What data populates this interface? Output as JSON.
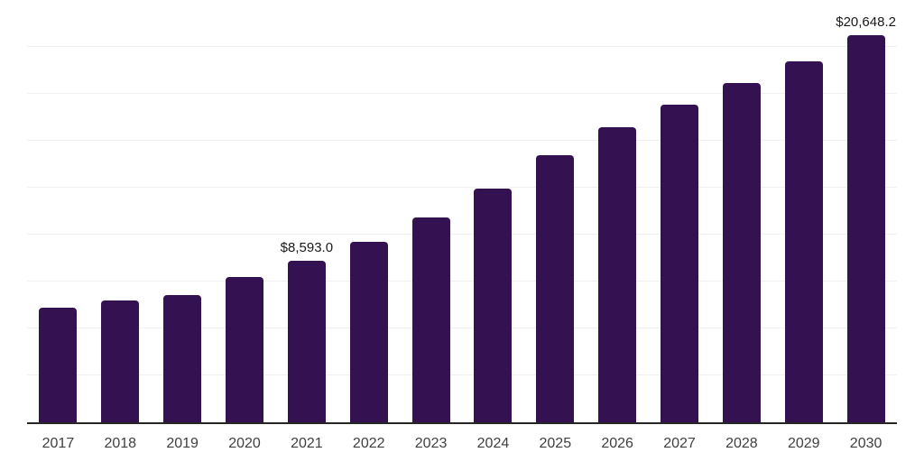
{
  "chart_data": {
    "type": "bar",
    "title": "",
    "xlabel": "",
    "ylabel": "",
    "categories": [
      "2017",
      "2018",
      "2019",
      "2020",
      "2021",
      "2022",
      "2023",
      "2024",
      "2025",
      "2026",
      "2027",
      "2028",
      "2029",
      "2030"
    ],
    "values": [
      6130,
      6490,
      6800,
      7760,
      8593.0,
      9630,
      10920,
      12460,
      14230,
      15710,
      16910,
      18060,
      19210,
      20648.2
    ],
    "value_labels": {
      "2021": "$8,593.0",
      "2030": "$20,648.2"
    },
    "ylim": [
      0,
      22500
    ],
    "gridline_interval": 2500,
    "grid": "horizontal",
    "legend_position": "none",
    "y_axis_tick_labels_visible": false,
    "bar_color": "#341150",
    "axis_line_color": "#262626",
    "gridline_color": "#f0f0f0",
    "tick_label_color": "#404040",
    "value_label_color": "#1a1a1a"
  }
}
